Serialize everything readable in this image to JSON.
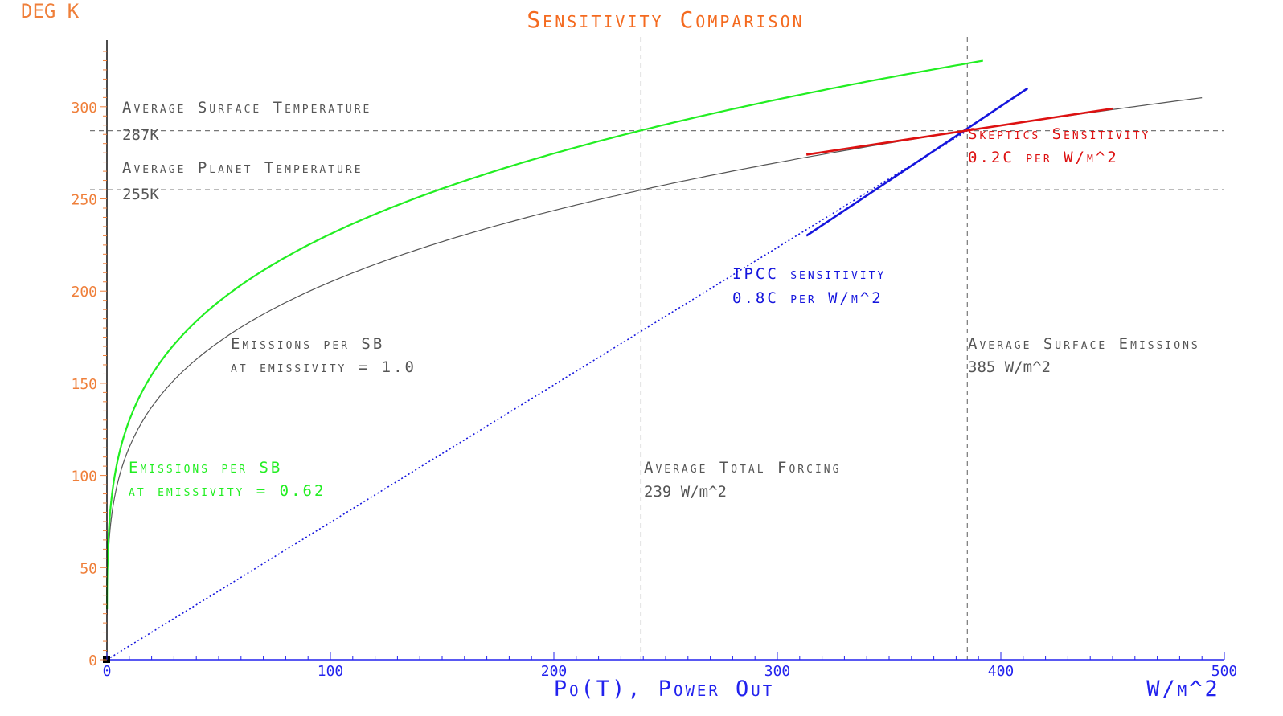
{
  "chart_data": {
    "type": "line",
    "title": "Sensitivity Comparison",
    "ylabel": "DEG K",
    "xlabel": "Po(T), Power Out",
    "xunit": "W/m^2",
    "xlim": [
      0,
      500
    ],
    "ylim": [
      0,
      330
    ],
    "x_ticks": [
      0,
      100,
      200,
      300,
      400,
      500
    ],
    "y_ticks": [
      0,
      50,
      100,
      150,
      200,
      250,
      300
    ],
    "grid": false,
    "colors": {
      "axis_y": "#111111",
      "axis_x": "#2222ee",
      "tick_y": "#ef7f3a",
      "tick_x": "#2222ee",
      "title": "#f46a1f",
      "green": "#22ee22",
      "gray": "#555555",
      "blue": "#1515dd",
      "red": "#dd1111",
      "ref": "#777777"
    },
    "reference_lines": {
      "horizontal": [
        {
          "y": 287,
          "label": "Average Surface Temperature",
          "value_label": "287K"
        },
        {
          "y": 255,
          "label": "Average Planet Temperature",
          "value_label": "255K"
        }
      ],
      "vertical": [
        {
          "x": 239,
          "label": "Average Total Forcing",
          "value_label": "239 W/m^2"
        },
        {
          "x": 385,
          "label": "Average Surface Emissions",
          "value_label": "385 W/m^2"
        }
      ]
    },
    "series": [
      {
        "role": "sb-0.62",
        "emissivity": 0.62,
        "x_max": 392,
        "color": "#22ee22",
        "label_lines": [
          "Emissions per SB",
          "at emissivity = 0.62"
        ]
      },
      {
        "role": "sb-1.0",
        "emissivity": 1.0,
        "x_max": 490,
        "color": "#555555",
        "label_lines": [
          "Emissions per SB",
          "at emissivity = 1.0"
        ]
      },
      {
        "role": "ipcc-line",
        "x": [
          313,
          412
        ],
        "y": [
          230,
          310
        ],
        "color": "#1515dd",
        "label_lines": [
          "IPCC sensitivity",
          "0.8C per W/m^2"
        ]
      },
      {
        "role": "ipcc-dotted",
        "x": [
          0,
          385
        ],
        "y": [
          0,
          287
        ],
        "color": "#1515dd"
      },
      {
        "role": "skeptics-line",
        "x": [
          313,
          450
        ],
        "y": [
          274,
          299
        ],
        "color": "#dd1111",
        "label_lines": [
          "Skeptics Sensitivity",
          "0.2C per W/m^2"
        ]
      }
    ]
  }
}
